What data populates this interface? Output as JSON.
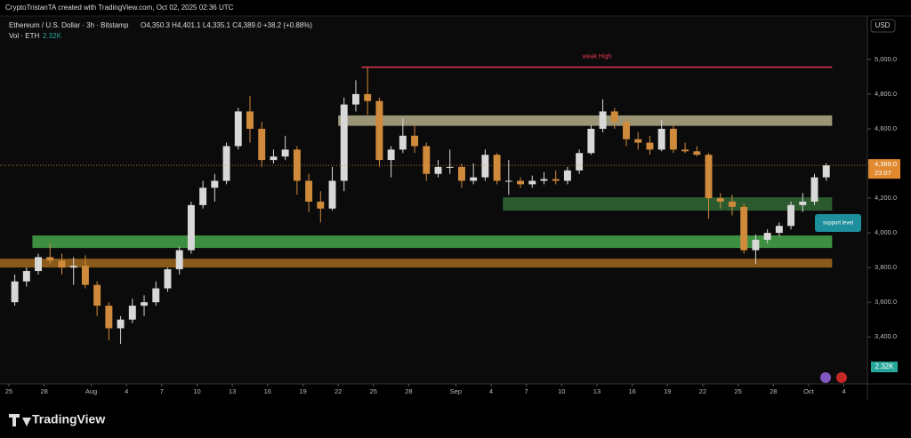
{
  "header": {
    "attribution": "CryptoTristanTA created with TradingView.com, Oct 02, 2025 02:36 UTC",
    "symbol": "Ethereum / U.S. Dollar · 3h · Bitstamp",
    "ohlc": "O4,350.3  H4,401.1  L4,335.1  C4,389.0  +38.2 (+0.88%)",
    "volume_label": "Vol · ETH",
    "volume_value": "2.32K",
    "currency": "USD",
    "countdown": "23:07",
    "brand": "TradingView"
  },
  "chart_data": {
    "type": "candlestick",
    "up_color": "#d8d8d8",
    "down_color": "#d08a3c",
    "x": [
      "2025-07-25",
      "2025-07-26",
      "2025-07-27",
      "2025-07-28",
      "2025-07-29",
      "2025-07-30",
      "2025-07-31",
      "2025-08-01",
      "2025-08-02",
      "2025-08-03",
      "2025-08-04",
      "2025-08-05",
      "2025-08-06",
      "2025-08-07",
      "2025-08-08",
      "2025-08-09",
      "2025-08-10",
      "2025-08-11",
      "2025-08-12",
      "2025-08-13",
      "2025-08-14",
      "2025-08-15",
      "2025-08-16",
      "2025-08-17",
      "2025-08-18",
      "2025-08-19",
      "2025-08-20",
      "2025-08-21",
      "2025-08-22",
      "2025-08-23",
      "2025-08-24",
      "2025-08-25",
      "2025-08-26",
      "2025-08-27",
      "2025-08-28",
      "2025-08-29",
      "2025-08-30",
      "2025-08-31",
      "2025-09-01",
      "2025-09-02",
      "2025-09-03",
      "2025-09-04",
      "2025-09-05",
      "2025-09-06",
      "2025-09-07",
      "2025-09-08",
      "2025-09-09",
      "2025-09-10",
      "2025-09-11",
      "2025-09-12",
      "2025-09-13",
      "2025-09-14",
      "2025-09-15",
      "2025-09-16",
      "2025-09-17",
      "2025-09-18",
      "2025-09-19",
      "2025-09-20",
      "2025-09-21",
      "2025-09-22",
      "2025-09-23",
      "2025-09-24",
      "2025-09-25",
      "2025-09-26",
      "2025-09-27",
      "2025-09-28",
      "2025-09-29",
      "2025-09-30",
      "2025-10-01",
      "2025-10-02"
    ],
    "ohlc": [
      [
        3600,
        3760,
        3580,
        3720
      ],
      [
        3720,
        3800,
        3690,
        3780
      ],
      [
        3780,
        3880,
        3760,
        3860
      ],
      [
        3860,
        3940,
        3820,
        3840
      ],
      [
        3840,
        3880,
        3760,
        3800
      ],
      [
        3800,
        3860,
        3700,
        3810
      ],
      [
        3810,
        3870,
        3680,
        3700
      ],
      [
        3700,
        3720,
        3520,
        3580
      ],
      [
        3580,
        3600,
        3380,
        3450
      ],
      [
        3450,
        3520,
        3360,
        3500
      ],
      [
        3500,
        3620,
        3480,
        3580
      ],
      [
        3580,
        3640,
        3520,
        3600
      ],
      [
        3600,
        3720,
        3580,
        3680
      ],
      [
        3680,
        3800,
        3660,
        3790
      ],
      [
        3790,
        3920,
        3760,
        3900
      ],
      [
        3900,
        4180,
        3880,
        4160
      ],
      [
        4160,
        4300,
        4140,
        4260
      ],
      [
        4260,
        4340,
        4180,
        4300
      ],
      [
        4300,
        4520,
        4280,
        4500
      ],
      [
        4500,
        4720,
        4480,
        4700
      ],
      [
        4700,
        4790,
        4520,
        4600
      ],
      [
        4600,
        4640,
        4380,
        4420
      ],
      [
        4420,
        4480,
        4400,
        4440
      ],
      [
        4440,
        4560,
        4420,
        4480
      ],
      [
        4480,
        4500,
        4220,
        4300
      ],
      [
        4300,
        4340,
        4120,
        4180
      ],
      [
        4180,
        4240,
        4060,
        4140
      ],
      [
        4140,
        4380,
        4130,
        4300
      ],
      [
        4300,
        4780,
        4240,
        4740
      ],
      [
        4740,
        4880,
        4700,
        4800
      ],
      [
        4800,
        4950,
        4680,
        4760
      ],
      [
        4760,
        4780,
        4380,
        4420
      ],
      [
        4420,
        4500,
        4320,
        4480
      ],
      [
        4480,
        4660,
        4460,
        4560
      ],
      [
        4560,
        4620,
        4460,
        4500
      ],
      [
        4500,
        4520,
        4300,
        4340
      ],
      [
        4340,
        4420,
        4320,
        4380
      ],
      [
        4380,
        4480,
        4340,
        4380
      ],
      [
        4380,
        4400,
        4260,
        4300
      ],
      [
        4300,
        4400,
        4280,
        4320
      ],
      [
        4320,
        4480,
        4300,
        4450
      ],
      [
        4450,
        4460,
        4280,
        4300
      ],
      [
        4300,
        4420,
        4220,
        4300
      ],
      [
        4300,
        4320,
        4260,
        4280
      ],
      [
        4280,
        4330,
        4260,
        4300
      ],
      [
        4300,
        4350,
        4280,
        4310
      ],
      [
        4310,
        4360,
        4280,
        4300
      ],
      [
        4300,
        4380,
        4280,
        4360
      ],
      [
        4360,
        4480,
        4340,
        4460
      ],
      [
        4460,
        4620,
        4450,
        4600
      ],
      [
        4600,
        4770,
        4580,
        4700
      ],
      [
        4700,
        4720,
        4600,
        4640
      ],
      [
        4640,
        4660,
        4500,
        4540
      ],
      [
        4540,
        4580,
        4480,
        4520
      ],
      [
        4520,
        4560,
        4450,
        4480
      ],
      [
        4480,
        4650,
        4470,
        4600
      ],
      [
        4600,
        4620,
        4460,
        4480
      ],
      [
        4480,
        4520,
        4460,
        4470
      ],
      [
        4470,
        4500,
        4440,
        4450
      ],
      [
        4450,
        4460,
        4080,
        4200
      ],
      [
        4200,
        4230,
        4140,
        4180
      ],
      [
        4180,
        4220,
        4100,
        4150
      ],
      [
        4150,
        4170,
        3880,
        3900
      ],
      [
        3900,
        3990,
        3820,
        3960
      ],
      [
        3960,
        4020,
        3940,
        4000
      ],
      [
        4000,
        4060,
        3980,
        4040
      ],
      [
        4040,
        4180,
        4020,
        4160
      ],
      [
        4160,
        4230,
        4120,
        4180
      ],
      [
        4180,
        4340,
        4160,
        4320
      ],
      [
        4320,
        4401,
        4300,
        4389
      ]
    ],
    "xlim": [
      "2025-07-25",
      "2025-10-06"
    ],
    "ylim": [
      3140,
      5240
    ],
    "yticks": [
      {
        "value": 3400,
        "label": "3,400.0"
      },
      {
        "value": 3600,
        "label": "3,600.0"
      },
      {
        "value": 3800,
        "label": "3,800.0"
      },
      {
        "value": 4000,
        "label": "4,000.0"
      },
      {
        "value": 4200,
        "label": "4,200.0"
      },
      {
        "value": 4400,
        "label": "4,400.0"
      },
      {
        "value": 4600,
        "label": "4,600.0"
      },
      {
        "value": 4800,
        "label": "4,800.0"
      },
      {
        "value": 5000,
        "label": "5,000.0"
      }
    ],
    "xticks": [
      {
        "value": "2025-07-25",
        "label": "25"
      },
      {
        "value": "2025-07-28",
        "label": "28"
      },
      {
        "value": "2025-08-01",
        "label": "Aug"
      },
      {
        "value": "2025-08-04",
        "label": "4"
      },
      {
        "value": "2025-08-07",
        "label": "7"
      },
      {
        "value": "2025-08-10",
        "label": "10"
      },
      {
        "value": "2025-08-13",
        "label": "13"
      },
      {
        "value": "2025-08-16",
        "label": "16"
      },
      {
        "value": "2025-08-19",
        "label": "19"
      },
      {
        "value": "2025-08-22",
        "label": "22"
      },
      {
        "value": "2025-08-25",
        "label": "25"
      },
      {
        "value": "2025-08-28",
        "label": "28"
      },
      {
        "value": "2025-09-01",
        "label": "Sep"
      },
      {
        "value": "2025-09-04",
        "label": "4"
      },
      {
        "value": "2025-09-07",
        "label": "7"
      },
      {
        "value": "2025-09-10",
        "label": "10"
      },
      {
        "value": "2025-09-13",
        "label": "13"
      },
      {
        "value": "2025-09-16",
        "label": "16"
      },
      {
        "value": "2025-09-19",
        "label": "19"
      },
      {
        "value": "2025-09-22",
        "label": "22"
      },
      {
        "value": "2025-09-25",
        "label": "25"
      },
      {
        "value": "2025-09-28",
        "label": "28"
      },
      {
        "value": "2025-10-01",
        "label": "Oct"
      },
      {
        "value": "2025-10-04",
        "label": "4"
      }
    ],
    "zones": [
      {
        "from": "2025-08-22",
        "to": "2025-10-02",
        "low": 4617,
        "high": 4677,
        "color": "#9a9576"
      },
      {
        "from": "2025-09-05",
        "to": "2025-10-02",
        "low": 4128,
        "high": 4205,
        "color": "#2b5a2e"
      },
      {
        "from": "2025-07-27",
        "to": "2025-10-02",
        "low": 3913,
        "high": 3985,
        "color": "#3e8e41"
      },
      {
        "from": "2025-07-24",
        "to": "2025-10-02",
        "low": 3800,
        "high": 3851,
        "color": "#8a5a1a"
      }
    ],
    "level": {
      "label": "weak High",
      "value": 4955,
      "from": "2025-08-24",
      "to": "2025-10-02",
      "color": "#e8394f"
    },
    "last_price": {
      "value": 4389,
      "label": "4,389.0",
      "color": "#e0892f"
    },
    "annotation": "support level"
  }
}
